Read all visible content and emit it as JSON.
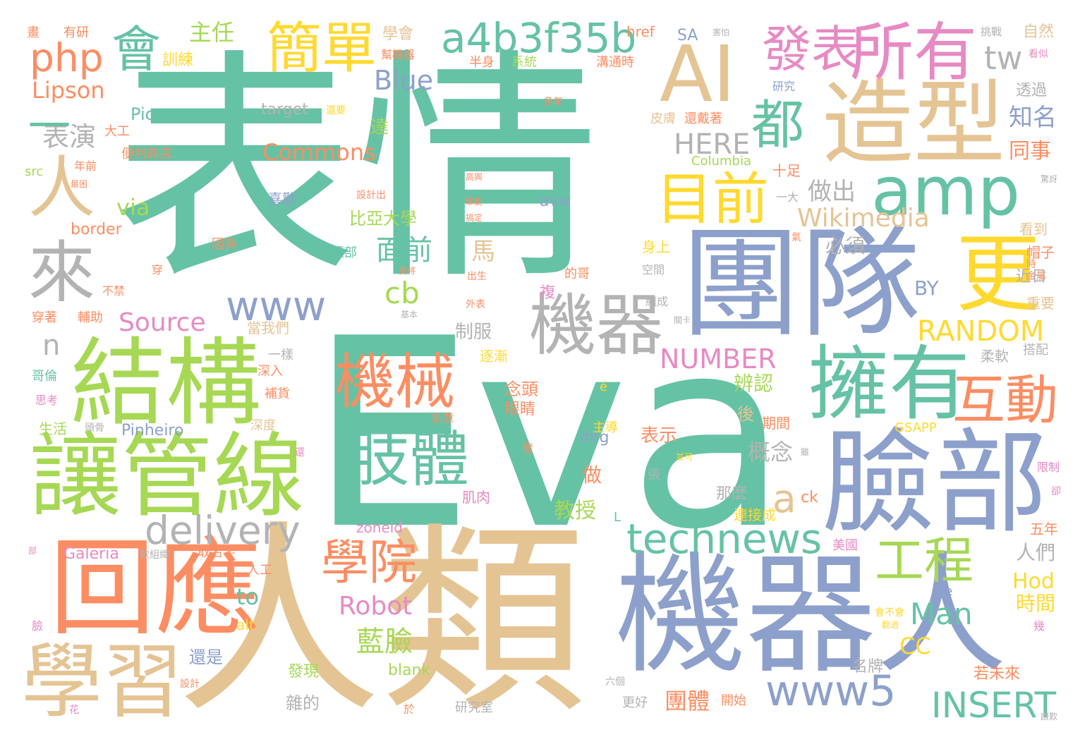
{
  "palette": {
    "green": "#66c2a5",
    "tan": "#e5c494",
    "blue": "#8da0cb",
    "orange": "#fc8d62",
    "lime": "#a6d854",
    "yellow": "#ffd92f",
    "gray": "#b3b3b3",
    "pink": "#e78ac3"
  },
  "words": [
    "Eva",
    "表情",
    "人類",
    "機器人",
    "團隊",
    "臉部",
    "讓管線",
    "結構",
    "造型",
    "回應",
    "學習",
    "擁有",
    "更",
    "AI",
    "amp",
    "機器",
    "所有",
    "發表",
    "肢體",
    "機械",
    "目前",
    "互動",
    "來",
    "簡單",
    "都",
    "工程",
    "學院",
    "a4b3f35b",
    "technews",
    "delivery",
    "www5",
    "www",
    "INSERT",
    "人",
    "會",
    "php",
    "Lipson",
    "主任",
    "Commons",
    "表演",
    "HERE",
    "Wikimedia",
    "RANDOM",
    "NUMBER",
    "Source",
    "Robot",
    "Man",
    "Blue",
    "tw",
    "藍臉",
    "面前",
    "做出",
    "知名",
    "同事",
    "必須",
    "辨認",
    "概念",
    "教授",
    "團體",
    "人們",
    "時間",
    "Hod",
    "CC",
    "BY",
    "cb",
    "via",
    "a",
    "ck",
    "n",
    "to",
    "雜的",
    "還是",
    "發現",
    "比亞大學",
    "達",
    "馬",
    "制服",
    "念頭",
    "表示",
    "做",
    "後",
    "期間",
    "肌肉",
    "那麼",
    "連接成",
    "五年",
    "美國",
    "名牌",
    "若未來",
    "開始",
    "更好",
    "研究室",
    "六個",
    "於",
    "花",
    "設計",
    "臉",
    "alt",
    "Galeria",
    "zoneid",
    "blank",
    "img",
    "Pinheiro",
    "GSAPP",
    "Columbia",
    "avw",
    "border",
    "target",
    "Picasa",
    "src",
    "href",
    "SA",
    "自然",
    "挑戰",
    "看似",
    "研究",
    "透過",
    "多年",
    "皮膚",
    "還戴著",
    "系統",
    "半身",
    "溝通時",
    "學會",
    "幫機器",
    "訓練",
    "有研",
    "畫",
    "害怕",
    "還要",
    "大工",
    "便利商店",
    "年前",
    "最困",
    "高興",
    "設計出",
    "聯動",
    "搞定",
    "喜歡",
    "一大",
    "十足",
    "驚訝",
    "看到",
    "帽子",
    "時",
    "金屬",
    "近日",
    "重要",
    "搭配",
    "柔軟",
    "身上",
    "空間",
    "組成",
    "關卡",
    "一樣",
    "深入",
    "補貨",
    "深度",
    "創意",
    "眼睛",
    "主導",
    "發",
    "逐漸",
    "外表",
    "基本",
    "當我們",
    "穿著",
    "輔助",
    "哥倫",
    "思考",
    "生活",
    "頭骨",
    "張",
    "並可",
    "雖",
    "限制",
    "卻",
    "幾",
    "de",
    "翻過",
    "會不會",
    "取名字",
    "人工",
    "軟組織",
    "還",
    "頭部",
    "因為",
    "穿",
    "不禁",
    "出生",
    "的哥",
    "複",
    "要將",
    "氣",
    "é",
    "L",
    "部",
    "讚歎",
    "一"
  ]
}
